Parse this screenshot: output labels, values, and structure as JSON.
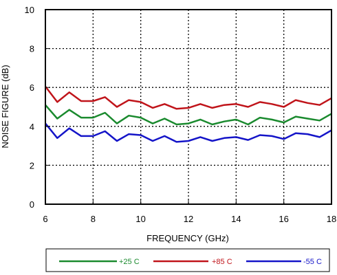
{
  "chart_data": {
    "type": "line",
    "title": "",
    "xlabel": "FREQUENCY (GHz)",
    "ylabel": "NOISE FIGURE (dB)",
    "xlim": [
      6,
      18
    ],
    "ylim": [
      0,
      10
    ],
    "xticks": [
      6,
      8,
      10,
      12,
      14,
      16,
      18
    ],
    "yticks": [
      0,
      2,
      4,
      6,
      8,
      10
    ],
    "grid": true,
    "legend_position": "bottom",
    "x": [
      6,
      6.5,
      7,
      7.5,
      8,
      8.5,
      9,
      9.5,
      10,
      10.5,
      11,
      11.5,
      12,
      12.5,
      13,
      13.5,
      14,
      14.5,
      15,
      15.5,
      16,
      16.5,
      17,
      17.5,
      18
    ],
    "series": [
      {
        "name": "+25 C",
        "color": "#1a8a2e",
        "values": [
          5.1,
          4.4,
          4.85,
          4.45,
          4.45,
          4.7,
          4.15,
          4.55,
          4.45,
          4.15,
          4.4,
          4.1,
          4.15,
          4.35,
          4.1,
          4.25,
          4.35,
          4.1,
          4.45,
          4.35,
          4.2,
          4.5,
          4.4,
          4.3,
          4.65
        ]
      },
      {
        "name": "+85 C",
        "color": "#c0141a",
        "values": [
          6.05,
          5.25,
          5.75,
          5.3,
          5.3,
          5.5,
          5.0,
          5.35,
          5.25,
          4.95,
          5.15,
          4.9,
          4.95,
          5.15,
          4.95,
          5.1,
          5.15,
          5.0,
          5.25,
          5.15,
          5.0,
          5.35,
          5.2,
          5.1,
          5.45
        ]
      },
      {
        "name": "-55 C",
        "color": "#1414c8",
        "values": [
          4.15,
          3.4,
          3.9,
          3.5,
          3.5,
          3.75,
          3.25,
          3.6,
          3.55,
          3.25,
          3.5,
          3.2,
          3.25,
          3.45,
          3.25,
          3.4,
          3.45,
          3.3,
          3.55,
          3.5,
          3.35,
          3.65,
          3.6,
          3.45,
          3.8
        ]
      }
    ]
  }
}
